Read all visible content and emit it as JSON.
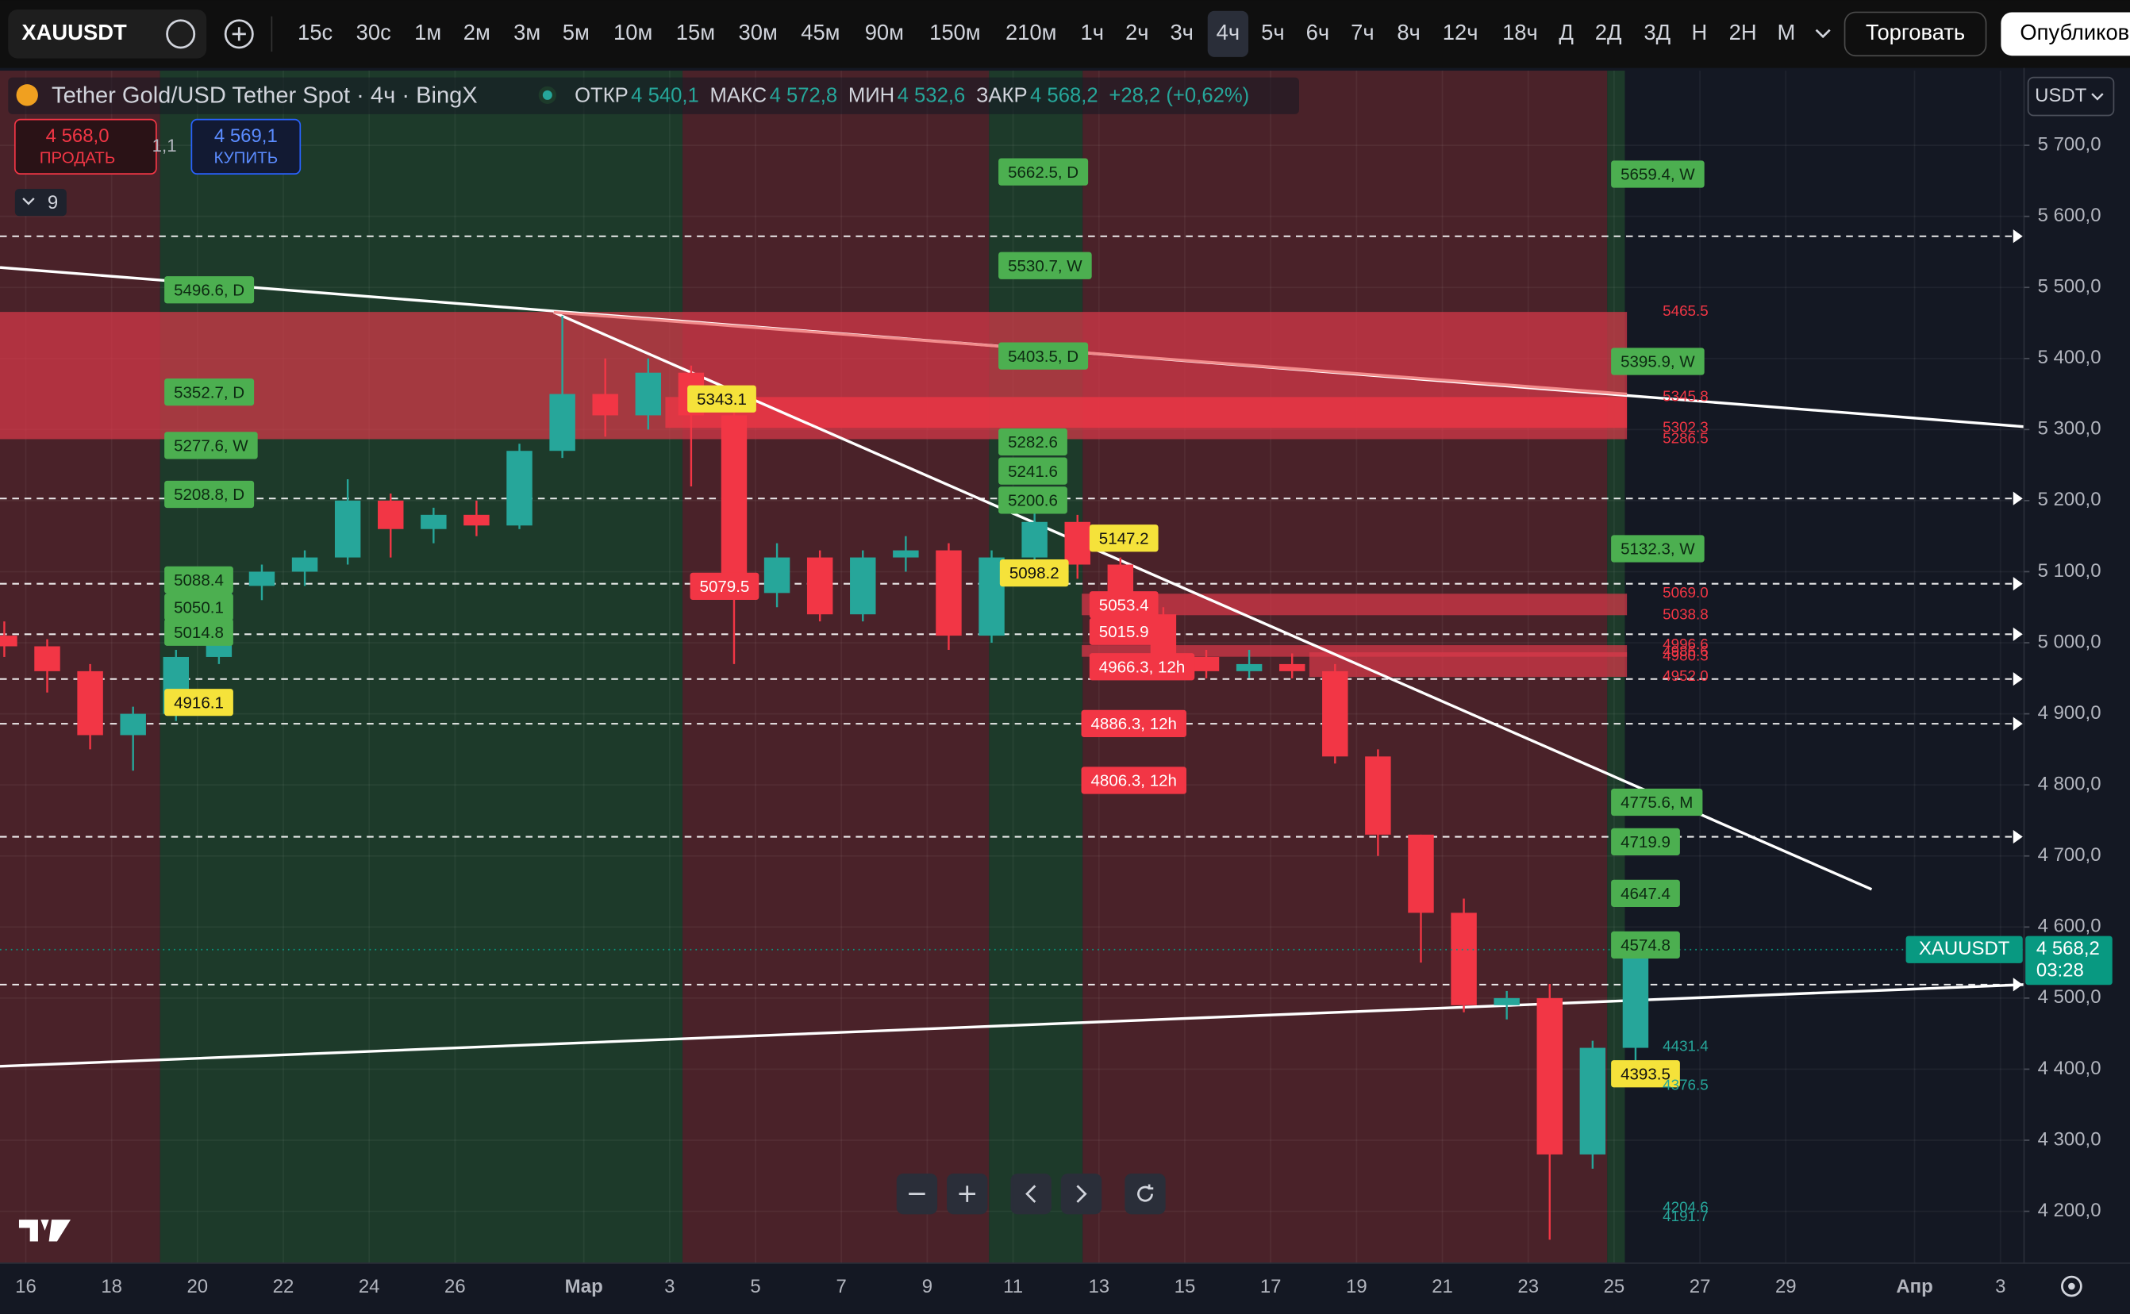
{
  "toolbar": {
    "symbol": "XAUUSDT",
    "intervals": [
      {
        "label": "15с"
      },
      {
        "label": "30с"
      },
      {
        "label": "1м"
      },
      {
        "label": "2м"
      },
      {
        "label": "3м"
      },
      {
        "label": "5м"
      },
      {
        "label": "10м"
      },
      {
        "label": "15м"
      },
      {
        "label": "30м"
      },
      {
        "label": "45м"
      },
      {
        "label": "90м"
      },
      {
        "label": "150м"
      },
      {
        "label": "210м"
      },
      {
        "label": "1ч"
      },
      {
        "label": "2ч"
      },
      {
        "label": "3ч"
      },
      {
        "label": "4ч",
        "active": true
      },
      {
        "label": "5ч"
      },
      {
        "label": "6ч"
      },
      {
        "label": "7ч"
      },
      {
        "label": "8ч"
      },
      {
        "label": "12ч"
      },
      {
        "label": "18ч"
      },
      {
        "label": "Д"
      },
      {
        "label": "2Д"
      },
      {
        "label": "3Д"
      },
      {
        "label": "Н"
      },
      {
        "label": "2Н"
      },
      {
        "label": "М"
      }
    ],
    "trade": "Торговать",
    "publish": "Опубликов"
  },
  "header": {
    "title": "Tether Gold/USD Tether Spot · 4ч · BingX",
    "ohlc": [
      {
        "label": "ОТКР",
        "value": "4 540,1"
      },
      {
        "label": "МАКС",
        "value": "4 572,8"
      },
      {
        "label": "МИН",
        "value": "4 532,6"
      },
      {
        "label": "ЗАКР",
        "value": "4 568,2"
      }
    ],
    "change": "+28,2 (+0,62%)",
    "sell": {
      "price": "4 568,0",
      "label": "ПРОДАТЬ"
    },
    "spread": "1,1",
    "buy": {
      "price": "4 569,1",
      "label": "КУПИТЬ"
    },
    "indicators": "9"
  },
  "currency": "USDT",
  "chart_data": {
    "type": "candlestick",
    "up_color": "#26a69a",
    "down_color": "#f23645",
    "xlim": [
      0.4,
      47.55
    ],
    "ylim": [
      4127,
      5805
    ],
    "xticks": [
      {
        "value": 1,
        "label": "16"
      },
      {
        "value": 3,
        "label": "18"
      },
      {
        "value": 5,
        "label": "20"
      },
      {
        "value": 7,
        "label": "22"
      },
      {
        "value": 9,
        "label": "24"
      },
      {
        "value": 11,
        "label": "26"
      },
      {
        "value": 14,
        "label": "Мар"
      },
      {
        "value": 16,
        "label": "3"
      },
      {
        "value": 18,
        "label": "5"
      },
      {
        "value": 20,
        "label": "7"
      },
      {
        "value": 22,
        "label": "9"
      },
      {
        "value": 24,
        "label": "11"
      },
      {
        "value": 26,
        "label": "13"
      },
      {
        "value": 28,
        "label": "15"
      },
      {
        "value": 30,
        "label": "17"
      },
      {
        "value": 32,
        "label": "19"
      },
      {
        "value": 34,
        "label": "21"
      },
      {
        "value": 36,
        "label": "23"
      },
      {
        "value": 38,
        "label": "25"
      },
      {
        "value": 40,
        "label": "27"
      },
      {
        "value": 42,
        "label": "29"
      },
      {
        "value": 45,
        "label": "Апр"
      },
      {
        "value": 47,
        "label": "3"
      }
    ],
    "yticks": [
      {
        "value": 5700,
        "label": "5 700,0"
      },
      {
        "value": 5600,
        "label": "5 600,0"
      },
      {
        "value": 5500,
        "label": "5 500,0"
      },
      {
        "value": 5400,
        "label": "5 400,0"
      },
      {
        "value": 5300,
        "label": "5 300,0"
      },
      {
        "value": 5200,
        "label": "5 200,0"
      },
      {
        "value": 5100,
        "label": "5 100,0"
      },
      {
        "value": 5000,
        "label": "5 000,0"
      },
      {
        "value": 4900,
        "label": "4 900,0"
      },
      {
        "value": 4800,
        "label": "4 800,0"
      },
      {
        "value": 4700,
        "label": "4 700,0"
      },
      {
        "value": 4600,
        "label": "4 600,0"
      },
      {
        "value": 4500,
        "label": "4 500,0"
      },
      {
        "value": 4400,
        "label": "4 400,0"
      },
      {
        "value": 4300,
        "label": "4 300,0"
      },
      {
        "value": 4200,
        "label": "4 200,0"
      }
    ],
    "x": [
      0.5,
      1.5,
      2.5,
      3.5,
      4.5,
      5.5,
      6.5,
      7.5,
      8.5,
      9.5,
      10.5,
      11.5,
      12.5,
      13.5,
      14.5,
      15.5,
      16.5,
      17.5,
      18.5,
      19.5,
      20.5,
      21.5,
      22.5,
      23.5,
      24.5,
      25.5,
      26.5,
      27.5,
      28.5,
      29.5,
      30.5,
      31.5,
      32.5,
      33.5,
      34.5,
      35.5,
      36.5,
      37.5,
      38.5
    ],
    "open": [
      5010,
      4995,
      4960,
      4870,
      4900,
      4980,
      5080,
      5100,
      5120,
      5200,
      5160,
      5180,
      5165,
      5270,
      5350,
      5320,
      5380,
      5320,
      5070,
      5120,
      5040,
      5120,
      5130,
      5010,
      5120,
      5170,
      5110,
      5040,
      4980,
      4960,
      4970,
      4960,
      4840,
      4730,
      4620,
      4490,
      4500,
      4280,
      4430
    ],
    "high": [
      5030,
      5005,
      4970,
      4910,
      4990,
      5090,
      5110,
      5130,
      5230,
      5210,
      5190,
      5200,
      5280,
      5460,
      5400,
      5400,
      5390,
      5330,
      5140,
      5130,
      5130,
      5150,
      5140,
      5130,
      5200,
      5180,
      5120,
      5050,
      4990,
      4990,
      4985,
      4970,
      4850,
      4730,
      4640,
      4510,
      4520,
      4440,
      4590
    ],
    "low": [
      4980,
      4930,
      4850,
      4820,
      4890,
      4970,
      5060,
      5080,
      5110,
      5120,
      5140,
      5150,
      5160,
      5260,
      5290,
      5300,
      5220,
      4970,
      5050,
      5030,
      5030,
      5100,
      4990,
      5000,
      5100,
      5090,
      5030,
      4970,
      4950,
      4950,
      4950,
      4830,
      4700,
      4550,
      4480,
      4470,
      4160,
      4260,
      4390
    ],
    "close": [
      4995,
      4960,
      4870,
      4900,
      4980,
      5080,
      5100,
      5120,
      5200,
      5160,
      5180,
      5165,
      5270,
      5350,
      5320,
      5380,
      5320,
      5070,
      5120,
      5040,
      5120,
      5130,
      5010,
      5120,
      5170,
      5110,
      5040,
      4980,
      4960,
      4970,
      4960,
      4840,
      4730,
      4620,
      4490,
      4500,
      4280,
      4430,
      4568.2
    ],
    "sessions": [
      {
        "x": [
          0.4,
          4.13
        ],
        "color": "#4a2229"
      },
      {
        "x": [
          4.13,
          16.3
        ],
        "color": "#1d3a2a"
      },
      {
        "x": [
          16.3,
          23.44
        ],
        "color": "#4a2229"
      },
      {
        "x": [
          23.44,
          25.62
        ],
        "color": "#1d3a2a"
      },
      {
        "x": [
          25.62,
          37.84
        ],
        "color": "#4a2229"
      },
      {
        "x": [
          37.84,
          38.25
        ],
        "color": "#1d3a2a"
      }
    ],
    "zones": [
      {
        "x": [
          0.4,
          38.3
        ],
        "y": [
          5465.5,
          5286.5
        ],
        "color": "#d8394a"
      },
      {
        "x": [
          15.9,
          38.3
        ],
        "y": [
          5345.8,
          5302.3
        ],
        "color": "#f23645"
      },
      {
        "x": [
          25.6,
          38.3
        ],
        "y": [
          5069.0,
          5038.8
        ],
        "color": "#d8394a"
      },
      {
        "x": [
          25.6,
          38.3
        ],
        "y": [
          4996.6,
          4980.3
        ],
        "color": "#d8394a"
      },
      {
        "x": [
          30.9,
          38.3
        ],
        "y": [
          4986.6,
          4952.0
        ],
        "color": "#d8394a"
      }
    ],
    "levels": [
      5572,
      5203,
      5083,
      5012,
      4949,
      4886,
      4727,
      4519
    ],
    "trendlines": [
      {
        "x": [
          0.4,
          47.55
        ],
        "y": [
          5528,
          5304
        ],
        "color": "#ffffff"
      },
      {
        "x": [
          13.3,
          44.0
        ],
        "y": [
          5465,
          4653
        ],
        "color": "#ffffff"
      },
      {
        "x": [
          0.4,
          47.55
        ],
        "y": [
          4404,
          4519
        ],
        "color": "#ffffff"
      },
      {
        "x": [
          13.3,
          38.3
        ],
        "y": [
          5465,
          5350
        ],
        "color": "#f28b8b"
      }
    ],
    "zone_marks": {
      "color": "#f23645",
      "values": [
        5465.5,
        5345.8,
        5302.3,
        5286.5,
        5069.0,
        5038.8,
        4996.6,
        4986.6,
        4980.3,
        4952.0
      ],
      "value_labels": [
        "5465.5",
        "5345.8",
        "5302.3",
        "5286.5",
        "5069.0",
        "5038.8",
        "4996.6",
        "4986.6",
        "4980.3",
        "4952.0"
      ]
    },
    "support_marks": {
      "color": "#26a69a",
      "values": [
        4431.4,
        4376.5,
        4204.6,
        4191.7
      ],
      "value_labels": [
        "4431.4",
        "4376.5",
        "4204.6",
        "4191.7"
      ]
    },
    "tags": [
      {
        "price": 5496.6,
        "label": "5496.6, D",
        "style": "green"
      },
      {
        "price": 5352.7,
        "label": "5352.7, D",
        "style": "green"
      },
      {
        "price": 5277.6,
        "label": "5277.6, W",
        "style": "green"
      },
      {
        "price": 5208.8,
        "label": "5208.8, D",
        "style": "green"
      },
      {
        "price": 5088.4,
        "label": "5088.4",
        "style": "green"
      },
      {
        "price": 5050.1,
        "label": "5050.1",
        "style": "green"
      },
      {
        "price": 5014.8,
        "label": "5014.8",
        "style": "green"
      },
      {
        "price": 5662.5,
        "label": "5662.5, D",
        "style": "green"
      },
      {
        "price": 5530.7,
        "label": "5530.7, W",
        "style": "green"
      },
      {
        "price": 5403.5,
        "label": "5403.5, D",
        "style": "green"
      },
      {
        "price": 5282.6,
        "label": "5282.6",
        "style": "green"
      },
      {
        "price": 5241.6,
        "label": "5241.6",
        "style": "green"
      },
      {
        "price": 5200.6,
        "label": "5200.6",
        "style": "green"
      },
      {
        "price": 5659.4,
        "label": "5659.4, W",
        "style": "green"
      },
      {
        "price": 5395.9,
        "label": "5395.9, W",
        "style": "green"
      },
      {
        "price": 5132.3,
        "label": "5132.3, W",
        "style": "green"
      },
      {
        "price": 4775.6,
        "label": "4775.6, M",
        "style": "green"
      },
      {
        "price": 4719.9,
        "label": "4719.9",
        "style": "green"
      },
      {
        "price": 4647.4,
        "label": "4647.4",
        "style": "green"
      },
      {
        "price": 4574.8,
        "label": "4574.8",
        "style": "green"
      },
      {
        "price": 5343.1,
        "label": "5343.1",
        "style": "yellow"
      },
      {
        "price": 5147.2,
        "label": "5147.2",
        "style": "yellow"
      },
      {
        "price": 5098.2,
        "label": "5098.2",
        "style": "yellow"
      },
      {
        "price": 4916.1,
        "label": "4916.1",
        "style": "yellow"
      },
      {
        "price": 4393.5,
        "label": "4393.5",
        "style": "yellow"
      },
      {
        "price": 5079.5,
        "label": "5079.5",
        "style": "red"
      },
      {
        "price": 5053.4,
        "label": "5053.4",
        "style": "red"
      },
      {
        "price": 5015.9,
        "label": "5015.9",
        "style": "red"
      },
      {
        "price": 4966.3,
        "label": "4966.3, 12h",
        "style": "red"
      },
      {
        "price": 4886.3,
        "label": "4886.3, 12h",
        "style": "red"
      },
      {
        "price": 4806.3,
        "label": "4806.3, 12h",
        "style": "red"
      }
    ],
    "last_price": {
      "value": 4568.2,
      "label": "4 568,2",
      "countdown": "03:28",
      "symbol": "XAUUSDT",
      "color": "#089981"
    }
  }
}
